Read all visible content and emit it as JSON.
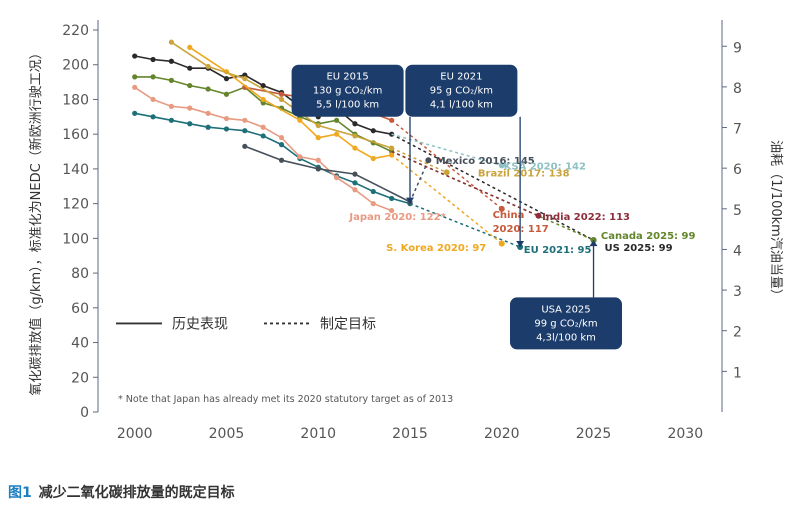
{
  "caption": {
    "label": "图1",
    "text": "减少二氧化碳排放量的既定目标"
  },
  "chart_data": {
    "type": "line",
    "ylabel_left": "氧化碳排放值（g/km），标准化为NEDC（新欧洲行驶工况）",
    "ylabel_right": "油耗（1/100km汽油当量）",
    "xlim": [
      1998,
      2032
    ],
    "ylim": [
      0,
      220
    ],
    "ylim_right": [
      0,
      9.4
    ],
    "x_ticks": [
      "2000",
      "2005",
      "2010",
      "2015",
      "2020",
      "2025",
      "2030"
    ],
    "y_ticks": [
      "0",
      "20",
      "40",
      "60",
      "80",
      "100",
      "120",
      "140",
      "160",
      "180",
      "200",
      "220"
    ],
    "y_ticks_right": [
      "1",
      "2",
      "3",
      "4",
      "5",
      "6",
      "7",
      "8",
      "9"
    ],
    "grid": false,
    "legend": {
      "position": "bottom-left",
      "historical": "历史表现",
      "target": "制定目标",
      "note": "* Note that Japan has already met its 2020 statutory target as of 2013"
    },
    "colors": {
      "axis": "#5a6a86",
      "tick": "#555555",
      "box": "#1c3c6b",
      "usa": "#2a2a2a",
      "eu": "#1d6f78",
      "china": "#c85a3c",
      "canada": "#63852c",
      "japan": "#e89a82",
      "korea": "#f0a81e",
      "mexico": "#46505a",
      "brazil": "#caa33a",
      "ksa": "#8ec1c4",
      "india": "#8d2e3a"
    },
    "series": [
      {
        "color": "usa",
        "historical": [
          [
            2000,
            205
          ],
          [
            2001,
            203
          ],
          [
            2002,
            202
          ],
          [
            2003,
            198
          ],
          [
            2004,
            198
          ],
          [
            2005,
            192
          ],
          [
            2006,
            194
          ],
          [
            2007,
            188
          ],
          [
            2008,
            184
          ],
          [
            2009,
            176
          ],
          [
            2010,
            170
          ],
          [
            2011,
            175
          ],
          [
            2012,
            166
          ],
          [
            2013,
            162
          ],
          [
            2014,
            160
          ]
        ],
        "target": [
          [
            2014,
            160
          ],
          [
            2025,
            99
          ]
        ]
      },
      {
        "color": "eu",
        "historical": [
          [
            2000,
            172
          ],
          [
            2001,
            170
          ],
          [
            2002,
            168
          ],
          [
            2003,
            166
          ],
          [
            2004,
            164
          ],
          [
            2005,
            163
          ],
          [
            2006,
            162
          ],
          [
            2007,
            159
          ],
          [
            2008,
            154
          ],
          [
            2009,
            146
          ],
          [
            2010,
            141
          ],
          [
            2011,
            136
          ],
          [
            2012,
            132
          ],
          [
            2013,
            127
          ],
          [
            2014,
            123
          ],
          [
            2015,
            120
          ]
        ],
        "target": [
          [
            2015,
            120
          ],
          [
            2021,
            95
          ]
        ]
      },
      {
        "color": "canada",
        "historical": [
          [
            2000,
            193
          ],
          [
            2001,
            193
          ],
          [
            2002,
            191
          ],
          [
            2003,
            188
          ],
          [
            2004,
            186
          ],
          [
            2005,
            183
          ],
          [
            2006,
            187
          ],
          [
            2007,
            178
          ],
          [
            2008,
            175
          ],
          [
            2009,
            170
          ],
          [
            2010,
            166
          ],
          [
            2011,
            168
          ],
          [
            2012,
            160
          ],
          [
            2013,
            155
          ],
          [
            2014,
            150
          ]
        ],
        "target": [
          [
            2014,
            150
          ],
          [
            2025,
            99
          ]
        ]
      },
      {
        "color": "china",
        "historical": [
          [
            2006,
            187
          ],
          [
            2008,
            183
          ],
          [
            2010,
            180
          ],
          [
            2012,
            176
          ],
          [
            2013,
            172
          ],
          [
            2014,
            168
          ]
        ],
        "target": [
          [
            2014,
            168
          ],
          [
            2020,
            117
          ]
        ]
      },
      {
        "color": "japan",
        "historical": [
          [
            2000,
            187
          ],
          [
            2001,
            180
          ],
          [
            2002,
            176
          ],
          [
            2003,
            175
          ],
          [
            2004,
            172
          ],
          [
            2005,
            169
          ],
          [
            2006,
            168
          ],
          [
            2007,
            164
          ],
          [
            2008,
            158
          ],
          [
            2009,
            147
          ],
          [
            2010,
            145
          ],
          [
            2011,
            135
          ],
          [
            2012,
            128
          ],
          [
            2013,
            120
          ],
          [
            2014,
            116
          ]
        ],
        "target": []
      },
      {
        "color": "korea",
        "historical": [
          [
            2003,
            210
          ],
          [
            2005,
            196
          ],
          [
            2007,
            180
          ],
          [
            2009,
            168
          ],
          [
            2010,
            158
          ],
          [
            2011,
            160
          ],
          [
            2012,
            152
          ],
          [
            2013,
            146
          ],
          [
            2014,
            148
          ]
        ],
        "target": [
          [
            2014,
            148
          ],
          [
            2020,
            97
          ]
        ]
      },
      {
        "color": "mexico",
        "historical": [
          [
            2006,
            153
          ],
          [
            2008,
            145
          ],
          [
            2010,
            140
          ],
          [
            2012,
            137
          ],
          [
            2015,
            121
          ]
        ],
        "target": [
          [
            2015,
            121
          ],
          [
            2016,
            145
          ]
        ]
      },
      {
        "color": "brazil",
        "historical": [
          [
            2002,
            213
          ],
          [
            2004,
            199
          ],
          [
            2006,
            192
          ],
          [
            2008,
            180
          ],
          [
            2010,
            165
          ],
          [
            2012,
            159
          ],
          [
            2014,
            152
          ]
        ],
        "target": [
          [
            2014,
            152
          ],
          [
            2017,
            138
          ]
        ]
      },
      {
        "color": "ksa",
        "historical": [],
        "target": [
          [
            2014,
            160
          ],
          [
            2020,
            142
          ]
        ]
      },
      {
        "color": "india",
        "historical": [],
        "target": [
          [
            2014,
            150
          ],
          [
            2022,
            113
          ]
        ]
      }
    ],
    "point_labels": [
      {
        "text": "Mexico 2016: 145",
        "color": "mexico",
        "at": [
          2016.4,
          145
        ]
      },
      {
        "text": "KSA 2020: 142",
        "color": "ksa",
        "at": [
          2020.1,
          142
        ]
      },
      {
        "text": "Brazil 2017: 138",
        "color": "brazil",
        "at": [
          2018.7,
          138
        ]
      },
      {
        "text": "India 2022: 113",
        "color": "india",
        "at": [
          2022.2,
          113
        ]
      },
      {
        "text": "Japan 2020: 122*",
        "color": "japan",
        "at": [
          2011.7,
          113
        ]
      },
      {
        "text": "China",
        "color": "china",
        "at": [
          2019.5,
          114
        ]
      },
      {
        "text": "2020: 117",
        "color": "china",
        "at": [
          2019.5,
          106
        ]
      },
      {
        "text": "Canada 2025: 99",
        "color": "canada",
        "at": [
          2025.4,
          102
        ]
      },
      {
        "text": "US 2025: 99",
        "color": "usa",
        "at": [
          2025.6,
          95
        ]
      },
      {
        "text": "S. Korea 2020: 97",
        "color": "korea",
        "at": [
          2013.7,
          95
        ]
      },
      {
        "text": "EU 2021: 95",
        "color": "eu",
        "at": [
          2021.2,
          94
        ]
      }
    ],
    "callouts": [
      {
        "lines": [
          "EU 2015",
          "130 g CO₂/km",
          "5,5 l/100 km"
        ],
        "box": [
          2011.6,
          200
        ],
        "point": [
          2015,
          120
        ]
      },
      {
        "lines": [
          "EU 2021",
          "95 g CO₂/km",
          "4,1 l/100 km"
        ],
        "box": [
          2017.8,
          200
        ],
        "point": [
          2021,
          95
        ]
      },
      {
        "lines": [
          "USA 2025",
          "99 g CO₂/km",
          "4,3l/100 km"
        ],
        "box": [
          2023.5,
          66
        ],
        "point": [
          2025,
          99
        ]
      }
    ]
  }
}
